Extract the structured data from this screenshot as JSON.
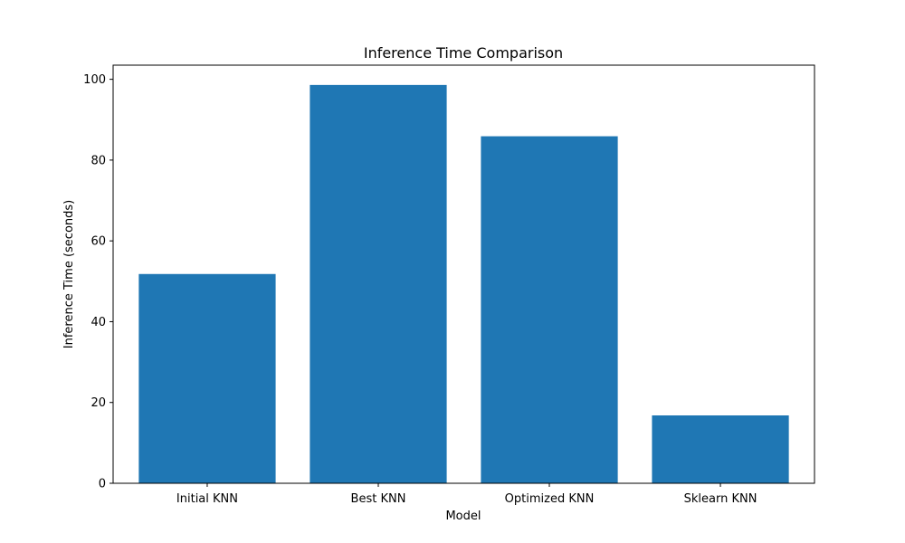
{
  "chart_data": {
    "type": "bar",
    "title": "Inference Time Comparison",
    "xlabel": "Model",
    "ylabel": "Inference Time (seconds)",
    "categories": [
      "Initial KNN",
      "Best KNN",
      "Optimized KNN",
      "Sklearn KNN"
    ],
    "values": [
      51.8,
      98.6,
      85.9,
      16.8
    ],
    "ylim": [
      0,
      103.5
    ],
    "yticks": [
      0,
      20,
      40,
      60,
      80,
      100
    ],
    "grid": false,
    "legend": "none",
    "colors": {
      "bar": "#1f77b4"
    }
  }
}
